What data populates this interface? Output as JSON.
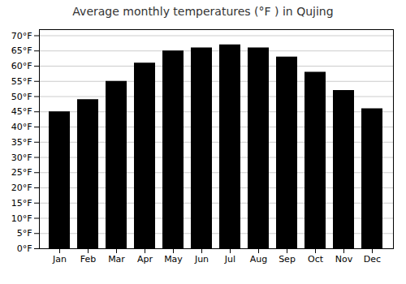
{
  "chart_data": {
    "type": "bar",
    "title": "Average monthly temperatures (°F ) in Qujing",
    "categories": [
      "Jan",
      "Feb",
      "Mar",
      "Apr",
      "May",
      "Jun",
      "Jul",
      "Aug",
      "Sep",
      "Oct",
      "Nov",
      "Dec"
    ],
    "values": [
      45,
      49,
      55,
      61,
      65,
      66,
      67,
      66,
      63,
      58,
      52,
      46
    ],
    "ylim": [
      0,
      72
    ],
    "yticks": [
      {
        "value": 0,
        "label": "0°F"
      },
      {
        "value": 5,
        "label": "5°F"
      },
      {
        "value": 10,
        "label": "10°F"
      },
      {
        "value": 15,
        "label": "15°F"
      },
      {
        "value": 20,
        "label": "20°F"
      },
      {
        "value": 25,
        "label": "25°F"
      },
      {
        "value": 30,
        "label": "30°F"
      },
      {
        "value": 35,
        "label": "35°F"
      },
      {
        "value": 40,
        "label": "40°F"
      },
      {
        "value": 45,
        "label": "45°F"
      },
      {
        "value": 50,
        "label": "50°F"
      },
      {
        "value": 55,
        "label": "55°F"
      },
      {
        "value": 60,
        "label": "60°F"
      },
      {
        "value": 65,
        "label": "65°F"
      },
      {
        "value": 70,
        "label": "70°F"
      }
    ],
    "grid": true
  }
}
